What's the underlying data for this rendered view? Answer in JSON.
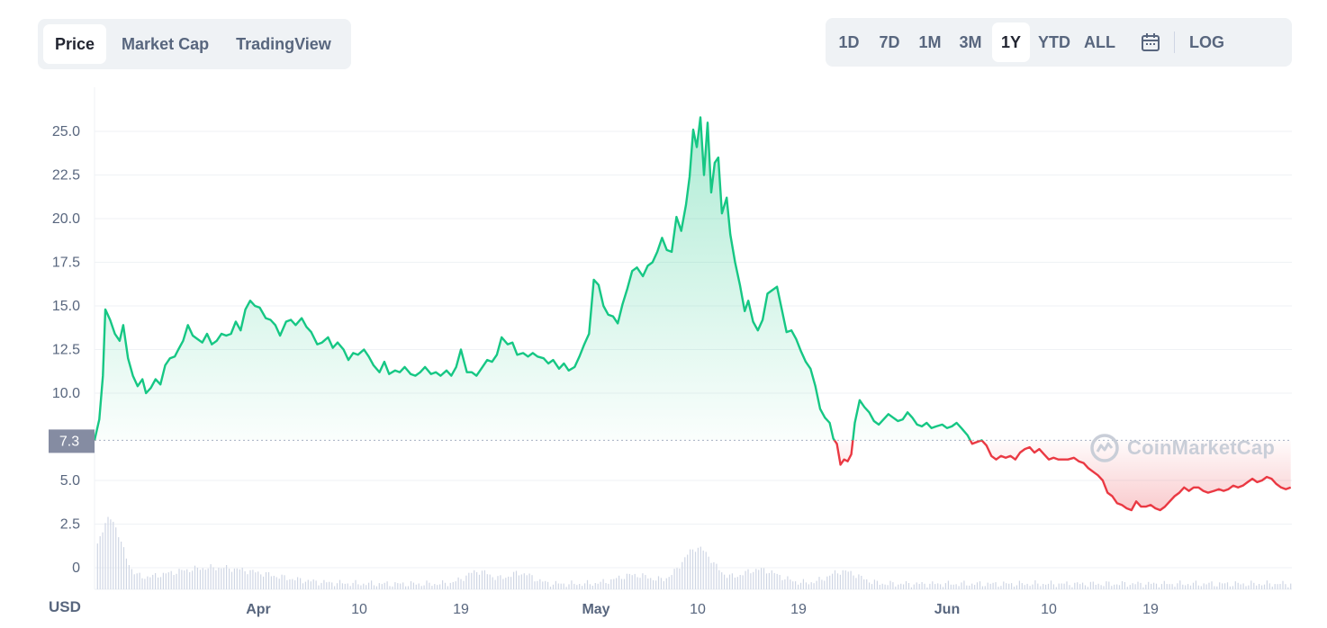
{
  "tabs": [
    {
      "label": "Price",
      "active": true
    },
    {
      "label": "Market Cap",
      "active": false
    },
    {
      "label": "TradingView",
      "active": false
    }
  ],
  "ranges": [
    {
      "label": "1D",
      "active": false
    },
    {
      "label": "7D",
      "active": false
    },
    {
      "label": "1M",
      "active": false
    },
    {
      "label": "3M",
      "active": false
    },
    {
      "label": "1Y",
      "active": true
    },
    {
      "label": "YTD",
      "active": false
    },
    {
      "label": "ALL",
      "active": false
    }
  ],
  "calendar_icon": "calendar-icon",
  "log_label": "LOG",
  "currency_label": "USD",
  "watermark": "CoinMarketCap",
  "colors": {
    "up": "#16c784",
    "down": "#ea3943",
    "grid": "#eff2f5",
    "text": "#58667e",
    "baseline_box": "#858ca2"
  },
  "chart_data": {
    "type": "area",
    "baseline": {
      "value": 7.3,
      "label": "7.3"
    },
    "y_ticks": [
      "25.0",
      "22.5",
      "20.0",
      "17.5",
      "15.0",
      "12.5",
      "10.0",
      "5.0",
      "2.5",
      "0"
    ],
    "ylim": [
      0,
      27.5
    ],
    "x_ticks": [
      {
        "label": "Apr",
        "day": 31,
        "bold": true
      },
      {
        "label": "10",
        "day": 40,
        "bold": false
      },
      {
        "label": "19",
        "day": 49,
        "bold": false
      },
      {
        "label": "May",
        "day": 61,
        "bold": true
      },
      {
        "label": "10",
        "day": 70,
        "bold": false
      },
      {
        "label": "19",
        "day": 79,
        "bold": false
      },
      {
        "label": "Jun",
        "day": 92,
        "bold": true
      },
      {
        "label": "10",
        "day": 101,
        "bold": false
      },
      {
        "label": "19",
        "day": 110,
        "bold": false
      }
    ],
    "x_range": [
      0,
      126
    ],
    "series": [
      {
        "values": [
          [
            0,
            7.3
          ],
          [
            0.4,
            8.5
          ],
          [
            0.7,
            11
          ],
          [
            0.9,
            14.8
          ],
          [
            1.3,
            14.2
          ],
          [
            1.7,
            13.4
          ],
          [
            2.1,
            13
          ],
          [
            2.4,
            13.9
          ],
          [
            2.8,
            12
          ],
          [
            3.2,
            11
          ],
          [
            3.6,
            10.4
          ],
          [
            4,
            10.8
          ],
          [
            4.3,
            10
          ],
          [
            4.7,
            10.3
          ],
          [
            5.1,
            10.8
          ],
          [
            5.5,
            10.5
          ],
          [
            5.9,
            11.6
          ],
          [
            6.3,
            12
          ],
          [
            6.7,
            12.1
          ],
          [
            7,
            12.5
          ],
          [
            7.4,
            13
          ],
          [
            7.8,
            13.9
          ],
          [
            8.2,
            13.3
          ],
          [
            8.6,
            13.1
          ],
          [
            9,
            12.9
          ],
          [
            9.4,
            13.4
          ],
          [
            9.8,
            12.8
          ],
          [
            10.2,
            13
          ],
          [
            10.6,
            13.4
          ],
          [
            11,
            13.3
          ],
          [
            11.4,
            13.4
          ],
          [
            11.8,
            14.1
          ],
          [
            12.2,
            13.6
          ],
          [
            12.6,
            14.8
          ],
          [
            13,
            15.3
          ],
          [
            13.4,
            15
          ],
          [
            13.8,
            14.9
          ],
          [
            14.3,
            14.3
          ],
          [
            14.7,
            14.2
          ],
          [
            15.1,
            13.9
          ],
          [
            15.5,
            13.3
          ],
          [
            16,
            14.1
          ],
          [
            16.4,
            14.2
          ],
          [
            16.8,
            13.9
          ],
          [
            17.3,
            14.3
          ],
          [
            17.7,
            13.8
          ],
          [
            18.1,
            13.5
          ],
          [
            18.6,
            12.8
          ],
          [
            19,
            12.9
          ],
          [
            19.5,
            13.2
          ],
          [
            19.9,
            12.6
          ],
          [
            20.3,
            12.9
          ],
          [
            20.8,
            12.5
          ],
          [
            21.2,
            11.9
          ],
          [
            21.6,
            12.3
          ],
          [
            22,
            12.2
          ],
          [
            22.5,
            12.5
          ],
          [
            22.9,
            12.1
          ],
          [
            23.3,
            11.6
          ],
          [
            23.8,
            11.2
          ],
          [
            24.2,
            11.8
          ],
          [
            24.6,
            11.1
          ],
          [
            25.1,
            11.3
          ],
          [
            25.5,
            11.2
          ],
          [
            25.9,
            11.5
          ],
          [
            26.4,
            11.1
          ],
          [
            26.8,
            11.0
          ],
          [
            27.2,
            11.2
          ],
          [
            27.6,
            11.5
          ],
          [
            28.1,
            11.1
          ],
          [
            28.5,
            11.2
          ],
          [
            28.9,
            11.0
          ],
          [
            29.4,
            11.3
          ],
          [
            29.8,
            11.0
          ],
          [
            30.2,
            11.5
          ],
          [
            30.6,
            12.5
          ],
          [
            31.1,
            11.2
          ],
          [
            31.5,
            11.2
          ],
          [
            31.9,
            11.0
          ],
          [
            32.3,
            11.4
          ],
          [
            32.8,
            11.9
          ],
          [
            33.2,
            11.8
          ],
          [
            33.6,
            12.2
          ],
          [
            34,
            13.2
          ],
          [
            34.5,
            12.8
          ],
          [
            34.9,
            12.9
          ],
          [
            35.3,
            12.2
          ],
          [
            35.8,
            12.3
          ],
          [
            36.2,
            12.1
          ],
          [
            36.6,
            12.3
          ],
          [
            37,
            12.1
          ],
          [
            37.5,
            12.0
          ],
          [
            37.9,
            11.7
          ],
          [
            38.3,
            11.9
          ],
          [
            38.8,
            11.4
          ],
          [
            39.2,
            11.7
          ],
          [
            39.6,
            11.3
          ],
          [
            40.1,
            11.5
          ],
          [
            40.5,
            12.1
          ],
          [
            40.9,
            12.8
          ],
          [
            41.3,
            13.4
          ],
          [
            41.7,
            16.5
          ],
          [
            42.1,
            16.2
          ],
          [
            42.5,
            15.0
          ],
          [
            42.9,
            14.5
          ],
          [
            43.3,
            14.4
          ],
          [
            43.7,
            14.0
          ],
          [
            44.1,
            15.1
          ],
          [
            44.5,
            16.0
          ],
          [
            44.9,
            17.0
          ],
          [
            45.3,
            17.2
          ],
          [
            45.8,
            16.7
          ],
          [
            46.2,
            17.3
          ],
          [
            46.6,
            17.5
          ],
          [
            47,
            18.1
          ],
          [
            47.4,
            18.9
          ],
          [
            47.8,
            18.2
          ],
          [
            48.2,
            18.1
          ],
          [
            48.6,
            20.1
          ],
          [
            49,
            19.3
          ],
          [
            49.4,
            20.8
          ],
          [
            49.7,
            22.4
          ],
          [
            50,
            25.1
          ],
          [
            50.3,
            24.1
          ],
          [
            50.6,
            25.8
          ],
          [
            50.9,
            22.5
          ],
          [
            51.2,
            25.5
          ],
          [
            51.5,
            21.5
          ],
          [
            51.8,
            23.2
          ],
          [
            52.1,
            23.5
          ],
          [
            52.4,
            20.3
          ],
          [
            52.8,
            21.2
          ],
          [
            53.1,
            19.1
          ],
          [
            53.5,
            17.5
          ],
          [
            53.9,
            16.2
          ],
          [
            54.3,
            14.7
          ],
          [
            54.6,
            15.3
          ],
          [
            55,
            14.1
          ],
          [
            55.4,
            13.6
          ],
          [
            55.8,
            14.2
          ],
          [
            56.2,
            15.7
          ],
          [
            56.6,
            15.9
          ],
          [
            57,
            16.1
          ],
          [
            57.4,
            14.8
          ],
          [
            57.8,
            13.5
          ],
          [
            58.2,
            13.6
          ],
          [
            58.6,
            13.1
          ],
          [
            59,
            12.4
          ],
          [
            59.4,
            11.8
          ],
          [
            59.8,
            11.4
          ],
          [
            60.2,
            10.4
          ],
          [
            60.6,
            9.1
          ],
          [
            61,
            8.6
          ],
          [
            61.4,
            8.3
          ],
          [
            61.7,
            7.4
          ],
          [
            62,
            7.1
          ],
          [
            62.3,
            5.9
          ],
          [
            62.6,
            6.2
          ],
          [
            62.9,
            6.1
          ],
          [
            63.2,
            6.5
          ],
          [
            63.5,
            8.3
          ],
          [
            63.9,
            9.6
          ],
          [
            64.3,
            9.2
          ],
          [
            64.7,
            8.9
          ],
          [
            65.1,
            8.4
          ],
          [
            65.5,
            8.2
          ],
          [
            65.9,
            8.5
          ],
          [
            66.3,
            8.8
          ],
          [
            66.7,
            8.6
          ],
          [
            67.1,
            8.4
          ],
          [
            67.5,
            8.5
          ],
          [
            67.9,
            8.9
          ],
          [
            68.3,
            8.6
          ],
          [
            68.7,
            8.2
          ],
          [
            69.1,
            8.1
          ],
          [
            69.5,
            8.3
          ],
          [
            69.9,
            8.0
          ],
          [
            70.3,
            8.1
          ],
          [
            70.8,
            8.2
          ],
          [
            71.2,
            8.0
          ],
          [
            71.6,
            8.1
          ],
          [
            72,
            8.3
          ],
          [
            72.4,
            8.0
          ],
          [
            72.9,
            7.6
          ],
          [
            73.3,
            7.1
          ],
          [
            73.7,
            7.2
          ],
          [
            74.1,
            7.3
          ],
          [
            74.5,
            7.0
          ],
          [
            74.9,
            6.4
          ],
          [
            75.3,
            6.2
          ],
          [
            75.7,
            6.4
          ],
          [
            76.1,
            6.3
          ],
          [
            76.5,
            6.4
          ],
          [
            76.9,
            6.2
          ],
          [
            77.3,
            6.6
          ],
          [
            77.7,
            6.8
          ],
          [
            78.1,
            6.9
          ],
          [
            78.5,
            6.6
          ],
          [
            78.9,
            6.8
          ],
          [
            79.3,
            6.5
          ],
          [
            79.7,
            6.2
          ],
          [
            80.1,
            6.3
          ],
          [
            80.5,
            6.2
          ],
          [
            80.9,
            6.2
          ],
          [
            81.3,
            6.2
          ],
          [
            81.8,
            6.3
          ],
          [
            82.2,
            6.1
          ],
          [
            82.6,
            6.0
          ],
          [
            83,
            5.7
          ],
          [
            83.4,
            5.5
          ],
          [
            83.8,
            5.3
          ],
          [
            84.2,
            5.0
          ],
          [
            84.6,
            4.3
          ],
          [
            85,
            4.1
          ],
          [
            85.4,
            3.7
          ],
          [
            85.8,
            3.6
          ],
          [
            86.2,
            3.4
          ],
          [
            86.6,
            3.3
          ],
          [
            87,
            3.8
          ],
          [
            87.4,
            3.5
          ],
          [
            87.8,
            3.5
          ],
          [
            88.2,
            3.6
          ],
          [
            88.6,
            3.4
          ],
          [
            89,
            3.3
          ],
          [
            89.4,
            3.5
          ],
          [
            89.8,
            3.8
          ],
          [
            90.2,
            4.1
          ],
          [
            90.6,
            4.3
          ],
          [
            91,
            4.6
          ],
          [
            91.4,
            4.4
          ],
          [
            91.8,
            4.6
          ],
          [
            92.2,
            4.6
          ],
          [
            92.6,
            4.4
          ],
          [
            93,
            4.3
          ],
          [
            93.5,
            4.4
          ],
          [
            93.9,
            4.5
          ],
          [
            94.3,
            4.4
          ],
          [
            94.7,
            4.5
          ],
          [
            95.1,
            4.7
          ],
          [
            95.5,
            4.6
          ],
          [
            95.9,
            4.7
          ],
          [
            96.3,
            4.9
          ],
          [
            96.7,
            5.1
          ],
          [
            97.1,
            4.9
          ],
          [
            97.5,
            5.0
          ],
          [
            97.9,
            5.2
          ],
          [
            98.3,
            5.1
          ],
          [
            98.7,
            4.8
          ],
          [
            99.1,
            4.6
          ],
          [
            99.5,
            4.5
          ],
          [
            99.9,
            4.6
          ]
        ]
      }
    ]
  }
}
